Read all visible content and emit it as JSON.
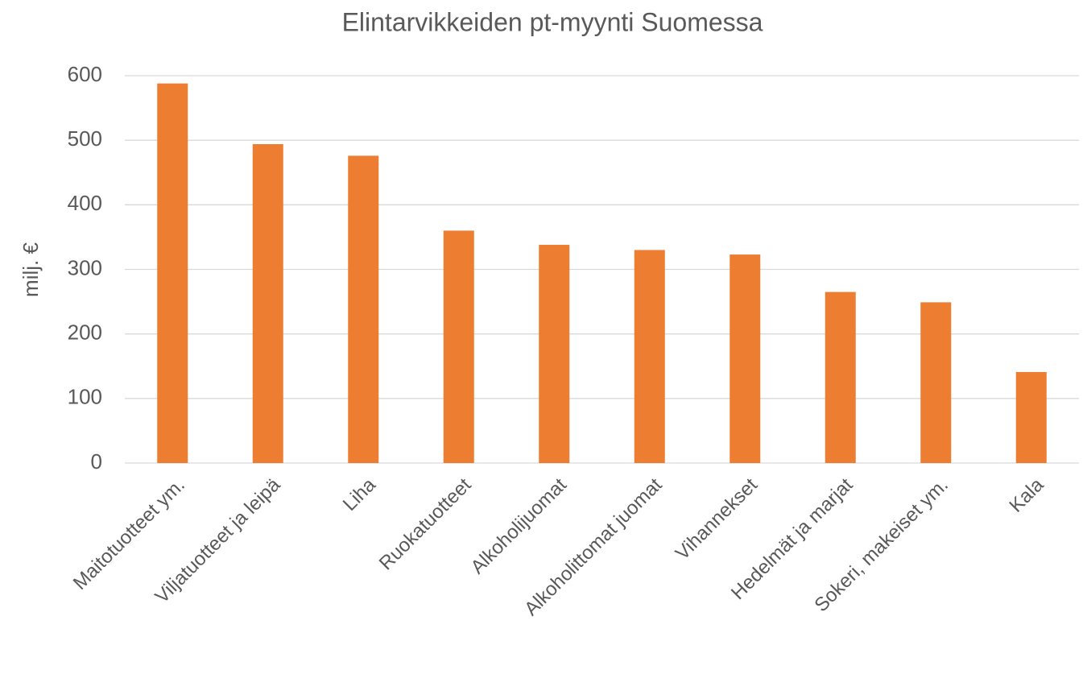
{
  "chart_data": {
    "type": "bar",
    "title": "Elintarvikkeiden pt-myynti Suomessa",
    "y_label": "milj. €",
    "categories": [
      "Maitotuotteet ym.",
      "Viljatuotteet ja leipä",
      "Liha",
      "Ruokatuotteet",
      "Alkoholijuomat",
      "Alkoholittomat juomat",
      "Vihannekset",
      "Hedelmät ja marjat",
      "Sokeri, makeiset ym.",
      "Kala"
    ],
    "values": [
      588,
      494,
      476,
      360,
      338,
      330,
      323,
      265,
      249,
      141
    ],
    "color": "#ed7d31",
    "ylim": [
      0,
      600
    ],
    "yticks": [
      0,
      100,
      200,
      300,
      400,
      500,
      600
    ],
    "grid": true
  }
}
